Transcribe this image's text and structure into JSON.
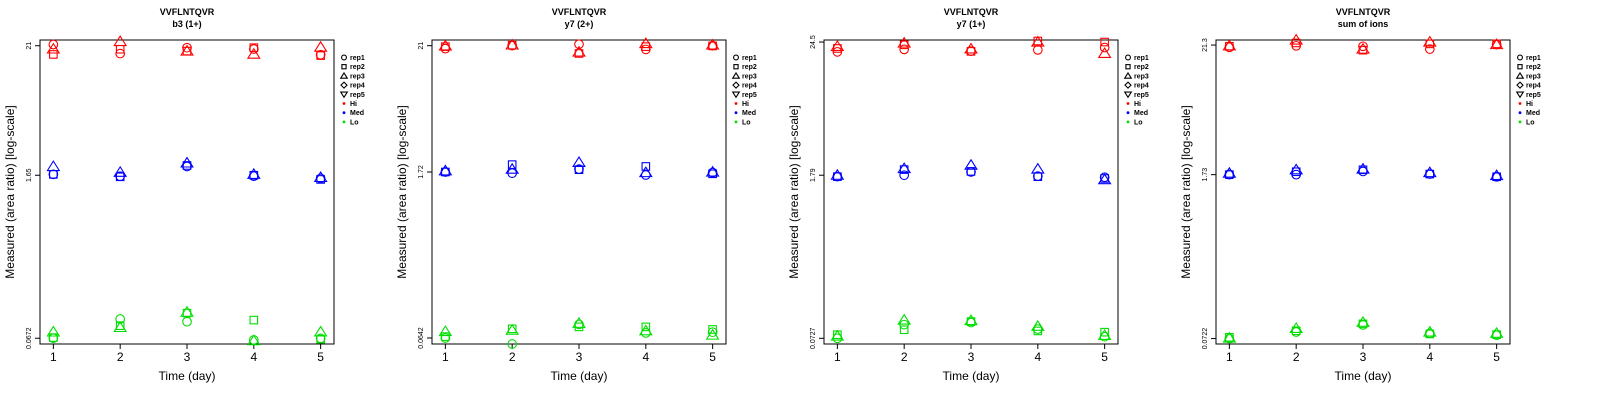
{
  "figure": {
    "xlabel": "Time (day)",
    "ylabel": "Measured (area ratio) [log-scale]",
    "legend_placement": "right-outside-top",
    "legend": [
      {
        "label": "rep1",
        "marker": "circle",
        "color": "#000000"
      },
      {
        "label": "rep2",
        "marker": "square",
        "color": "#000000"
      },
      {
        "label": "rep3",
        "marker": "triangle",
        "color": "#000000"
      },
      {
        "label": "rep4",
        "marker": "diamond",
        "color": "#000000"
      },
      {
        "label": "rep5",
        "marker": "triangle-down",
        "color": "#000000"
      },
      {
        "label": "Hi",
        "marker": "dot",
        "color": "#ff0000"
      },
      {
        "label": "Med",
        "marker": "dot",
        "color": "#0000ff"
      },
      {
        "label": "Lo",
        "marker": "dot",
        "color": "#00dd00"
      }
    ],
    "colors": {
      "Hi": "#ff0000",
      "Med": "#0000ff",
      "Lo": "#00dd00"
    }
  },
  "chart_data": [
    {
      "type": "scatter",
      "title": "VVFLNTQVR",
      "subtitle": "b3 (1+)",
      "xlabel": "Time (day)",
      "ylabel": "Measured (area ratio) [log-scale]",
      "x": [
        1,
        2,
        3,
        4,
        5
      ],
      "y_scale": "log",
      "yticks": [
        "0.0672",
        "1.65",
        "21"
      ],
      "ylim": [
        0.06,
        23.5
      ],
      "xlim": [
        0.8,
        5.2
      ],
      "grid": false,
      "series": [
        {
          "name": "Hi",
          "replicate": "rep1",
          "color": "#ff0000",
          "marker": "circle",
          "values": [
            21.5,
            18.0,
            20.2,
            19.7,
            17.6
          ]
        },
        {
          "name": "Hi",
          "replicate": "rep2",
          "color": "#ff0000",
          "marker": "square",
          "values": [
            17.7,
            19.6,
            18.9,
            20.2,
            17.3
          ]
        },
        {
          "name": "Hi",
          "replicate": "rep3",
          "color": "#ff0000",
          "marker": "triangle",
          "values": [
            19.7,
            22.8,
            18.9,
            17.8,
            20.4
          ]
        },
        {
          "name": "Med",
          "replicate": "rep1",
          "color": "#0000ff",
          "marker": "circle",
          "values": [
            1.68,
            1.62,
            1.96,
            1.62,
            1.55
          ]
        },
        {
          "name": "Med",
          "replicate": "rep2",
          "color": "#0000ff",
          "marker": "square",
          "values": [
            1.68,
            1.6,
            2.0,
            1.65,
            1.52
          ]
        },
        {
          "name": "Med",
          "replicate": "rep3",
          "color": "#0000ff",
          "marker": "triangle",
          "values": [
            1.96,
            1.75,
            2.1,
            1.68,
            1.58
          ]
        },
        {
          "name": "Lo",
          "replicate": "rep1",
          "color": "#00dd00",
          "marker": "circle",
          "values": [
            0.0672,
            0.098,
            0.093,
            0.065,
            0.067
          ]
        },
        {
          "name": "Lo",
          "replicate": "rep2",
          "color": "#00dd00",
          "marker": "square",
          "values": [
            0.068,
            0.086,
            0.11,
            0.096,
            0.066
          ]
        },
        {
          "name": "Lo",
          "replicate": "rep3",
          "color": "#00dd00",
          "marker": "triangle",
          "values": [
            0.076,
            0.083,
            0.112,
            0.064,
            0.076
          ]
        }
      ]
    },
    {
      "type": "scatter",
      "title": "VVFLNTQVR",
      "subtitle": "y7 (2+)",
      "xlabel": "Time (day)",
      "ylabel": "Measured (area ratio) [log-scale]",
      "x": [
        1,
        2,
        3,
        4,
        5
      ],
      "y_scale": "log",
      "yticks": [
        "0.0642",
        "1.72",
        "21"
      ],
      "ylim": [
        0.057,
        23.5
      ],
      "xlim": [
        0.8,
        5.2
      ],
      "grid": false,
      "series": [
        {
          "name": "Hi",
          "replicate": "rep1",
          "color": "#ff0000",
          "marker": "circle",
          "values": [
            19.8,
            21.0,
            21.6,
            19.5,
            21.0
          ]
        },
        {
          "name": "Hi",
          "replicate": "rep2",
          "color": "#ff0000",
          "marker": "square",
          "values": [
            20.6,
            21.2,
            18.0,
            20.6,
            20.9
          ]
        },
        {
          "name": "Hi",
          "replicate": "rep3",
          "color": "#ff0000",
          "marker": "triangle",
          "values": [
            20.9,
            21.3,
            18.5,
            21.9,
            21.3
          ]
        },
        {
          "name": "Med",
          "replicate": "rep1",
          "color": "#0000ff",
          "marker": "circle",
          "values": [
            1.72,
            1.68,
            1.82,
            1.62,
            1.7
          ]
        },
        {
          "name": "Med",
          "replicate": "rep2",
          "color": "#0000ff",
          "marker": "square",
          "values": [
            1.72,
            1.99,
            1.8,
            1.92,
            1.66
          ]
        },
        {
          "name": "Med",
          "replicate": "rep3",
          "color": "#0000ff",
          "marker": "triangle",
          "values": [
            1.76,
            1.82,
            2.08,
            1.7,
            1.72
          ]
        },
        {
          "name": "Lo",
          "replicate": "rep1",
          "color": "#00dd00",
          "marker": "circle",
          "values": [
            0.0642,
            0.057,
            0.084,
            0.071,
            0.072
          ]
        },
        {
          "name": "Lo",
          "replicate": "rep2",
          "color": "#00dd00",
          "marker": "square",
          "values": [
            0.066,
            0.077,
            0.08,
            0.08,
            0.076
          ]
        },
        {
          "name": "Lo",
          "replicate": "rep3",
          "color": "#00dd00",
          "marker": "triangle",
          "values": [
            0.073,
            0.075,
            0.086,
            0.074,
            0.068
          ]
        }
      ]
    },
    {
      "type": "scatter",
      "title": "VVFLNTQVR",
      "subtitle": "y7 (1+)",
      "xlabel": "Time (day)",
      "ylabel": "Measured (area ratio) [log-scale]",
      "x": [
        1,
        2,
        3,
        4,
        5
      ],
      "y_scale": "log",
      "yticks": [
        "0.0727",
        "1.79",
        "24.5"
      ],
      "ylim": [
        0.065,
        25.5
      ],
      "xlim": [
        0.8,
        5.2
      ],
      "grid": false,
      "series": [
        {
          "name": "Hi",
          "replicate": "rep1",
          "color": "#ff0000",
          "marker": "circle",
          "values": [
            20.2,
            21.2,
            20.5,
            21.0,
            22.0
          ]
        },
        {
          "name": "Hi",
          "replicate": "rep2",
          "color": "#ff0000",
          "marker": "square",
          "values": [
            21.6,
            23.2,
            20.4,
            25.0,
            24.5
          ]
        },
        {
          "name": "Hi",
          "replicate": "rep3",
          "color": "#ff0000",
          "marker": "triangle",
          "values": [
            22.5,
            24.0,
            21.4,
            24.5,
            19.6
          ]
        },
        {
          "name": "Med",
          "replicate": "rep1",
          "color": "#0000ff",
          "marker": "circle",
          "values": [
            1.74,
            1.79,
            1.91,
            1.76,
            1.72
          ]
        },
        {
          "name": "Med",
          "replicate": "rep2",
          "color": "#0000ff",
          "marker": "square",
          "values": [
            1.74,
            2.0,
            1.93,
            1.74,
            1.68
          ]
        },
        {
          "name": "Med",
          "replicate": "rep3",
          "color": "#0000ff",
          "marker": "triangle",
          "values": [
            1.79,
            2.04,
            2.18,
            2.02,
            1.64
          ]
        },
        {
          "name": "Lo",
          "replicate": "rep1",
          "color": "#00dd00",
          "marker": "circle",
          "values": [
            0.0727,
            0.095,
            0.099,
            0.087,
            0.075
          ]
        },
        {
          "name": "Lo",
          "replicate": "rep2",
          "color": "#00dd00",
          "marker": "square",
          "values": [
            0.078,
            0.086,
            0.101,
            0.084,
            0.082
          ]
        },
        {
          "name": "Lo",
          "replicate": "rep3",
          "color": "#00dd00",
          "marker": "triangle",
          "values": [
            0.076,
            0.104,
            0.103,
            0.092,
            0.077
          ]
        }
      ]
    },
    {
      "type": "scatter",
      "title": "VVFLNTQVR",
      "subtitle": "sum of ions",
      "xlabel": "Time (day)",
      "ylabel": "Measured (area ratio) [log-scale]",
      "x": [
        1,
        2,
        3,
        4,
        5
      ],
      "y_scale": "log",
      "yticks": [
        "0.0722",
        "1.73",
        "21.3"
      ],
      "ylim": [
        0.065,
        23.5
      ],
      "xlim": [
        0.8,
        5.2
      ],
      "grid": false,
      "series": [
        {
          "name": "Hi",
          "replicate": "rep1",
          "color": "#ff0000",
          "marker": "circle",
          "values": [
            20.4,
            21.0,
            20.8,
            19.7,
            21.5
          ]
        },
        {
          "name": "Hi",
          "replicate": "rep2",
          "color": "#ff0000",
          "marker": "square",
          "values": [
            20.8,
            22.2,
            19.3,
            21.8,
            21.8
          ]
        },
        {
          "name": "Hi",
          "replicate": "rep3",
          "color": "#ff0000",
          "marker": "triangle",
          "values": [
            21.0,
            23.5,
            19.7,
            22.6,
            21.5
          ]
        },
        {
          "name": "Med",
          "replicate": "rep1",
          "color": "#0000ff",
          "marker": "circle",
          "values": [
            1.73,
            1.73,
            1.84,
            1.75,
            1.66
          ]
        },
        {
          "name": "Med",
          "replicate": "rep2",
          "color": "#0000ff",
          "marker": "square",
          "values": [
            1.73,
            1.83,
            1.9,
            1.75,
            1.66
          ]
        },
        {
          "name": "Med",
          "replicate": "rep3",
          "color": "#0000ff",
          "marker": "triangle",
          "values": [
            1.78,
            1.9,
            1.93,
            1.8,
            1.7
          ]
        },
        {
          "name": "Lo",
          "replicate": "rep1",
          "color": "#00dd00",
          "marker": "circle",
          "values": [
            0.0722,
            0.082,
            0.094,
            0.08,
            0.077
          ]
        },
        {
          "name": "Lo",
          "replicate": "rep2",
          "color": "#00dd00",
          "marker": "square",
          "values": [
            0.074,
            0.084,
            0.096,
            0.079,
            0.078
          ]
        },
        {
          "name": "Lo",
          "replicate": "rep3",
          "color": "#00dd00",
          "marker": "triangle",
          "values": [
            0.073,
            0.088,
            0.099,
            0.082,
            0.08
          ]
        }
      ]
    }
  ]
}
